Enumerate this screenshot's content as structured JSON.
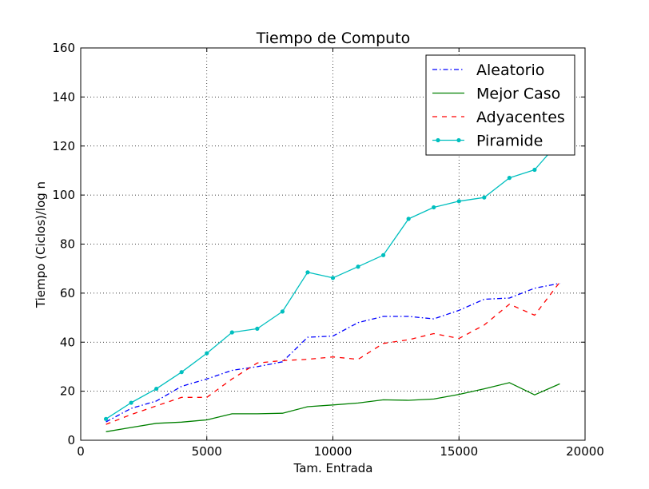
{
  "chart_data": {
    "type": "line",
    "title": "Tiempo de Computo",
    "xlabel": "Tam. Entrada",
    "ylabel": "Tiempo (Ciclos)/log n",
    "xlim": [
      0,
      20000
    ],
    "ylim": [
      0,
      160
    ],
    "xticks": [
      0,
      5000,
      10000,
      15000,
      20000
    ],
    "yticks": [
      0,
      20,
      40,
      60,
      80,
      100,
      120,
      140,
      160
    ],
    "xtick_labels": [
      "0",
      "5000",
      "10000",
      "15000",
      "20000"
    ],
    "ytick_labels": [
      "0",
      "20",
      "40",
      "60",
      "80",
      "100",
      "120",
      "140",
      "160"
    ],
    "grid": true,
    "legend_position": "top-right",
    "x": [
      1000,
      2000,
      3000,
      4000,
      5000,
      6000,
      7000,
      8000,
      9000,
      10000,
      11000,
      12000,
      13000,
      14000,
      15000,
      16000,
      17000,
      18000,
      19000
    ],
    "series": [
      {
        "name": "Aleatorio",
        "color": "#0000ff",
        "style": "dashdot",
        "marker": "none",
        "values": [
          7.5,
          13,
          16,
          22,
          25,
          28.5,
          30,
          32,
          42,
          42.5,
          48,
          50.5,
          50.5,
          49.5,
          53,
          57.5,
          58,
          62,
          64
        ]
      },
      {
        "name": "Mejor Caso",
        "color": "#008000",
        "style": "solid",
        "marker": "none",
        "values": [
          3.5,
          5.2,
          6.9,
          7.4,
          8.3,
          10.8,
          10.8,
          11,
          13.7,
          14.4,
          15.2,
          16.5,
          16.3,
          16.8,
          18.7,
          21,
          23.5,
          18.5,
          23
        ]
      },
      {
        "name": "Adyacentes",
        "color": "#ff0000",
        "style": "dashed",
        "marker": "none",
        "values": [
          6.5,
          10.5,
          14,
          17.5,
          17.5,
          25,
          31.5,
          32.5,
          33,
          34,
          33,
          39.5,
          41,
          43.5,
          41.5,
          47,
          55.5,
          51,
          64.5
        ]
      },
      {
        "name": "Piramide",
        "color": "#00bfbf",
        "style": "solid",
        "marker": "dot",
        "values": [
          8.7,
          15.3,
          21,
          27.8,
          35.5,
          44,
          45.5,
          52.5,
          68.5,
          66.2,
          70.8,
          75.5,
          90.3,
          95,
          97.5,
          99,
          107,
          110.3,
          122
        ]
      }
    ]
  }
}
